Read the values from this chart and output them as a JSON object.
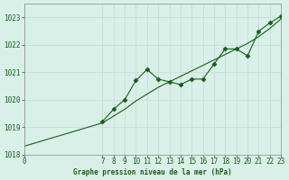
{
  "title": "Graphe pression niveau de la mer (hPa)",
  "background_color": "#d8f0e8",
  "grid_color": "#c8ddd5",
  "line_color": "#1a5c1a",
  "marker_color": "#1a5c1a",
  "x_smooth": [
    0,
    7,
    8,
    9,
    10,
    11,
    12,
    13,
    14,
    15,
    16,
    17,
    18,
    19,
    20,
    21,
    22,
    23
  ],
  "y_smooth": [
    1018.3,
    1019.15,
    1019.4,
    1019.65,
    1019.95,
    1020.2,
    1020.45,
    1020.65,
    1020.85,
    1021.05,
    1021.25,
    1021.45,
    1021.65,
    1021.85,
    1022.05,
    1022.3,
    1022.6,
    1022.95
  ],
  "x_data": [
    7,
    8,
    9,
    10,
    11,
    12,
    13,
    14,
    15,
    16,
    17,
    18,
    19,
    20,
    21,
    22,
    23
  ],
  "y_data": [
    1019.2,
    1019.65,
    1020.0,
    1020.7,
    1021.1,
    1020.75,
    1020.65,
    1020.55,
    1020.75,
    1020.75,
    1021.3,
    1021.85,
    1021.85,
    1021.6,
    1022.5,
    1022.8,
    1023.05
  ],
  "ylim": [
    1018,
    1023.5
  ],
  "yticks": [
    1018,
    1019,
    1020,
    1021,
    1022,
    1023
  ],
  "xticks": [
    0,
    7,
    8,
    9,
    10,
    11,
    12,
    13,
    14,
    15,
    16,
    17,
    18,
    19,
    20,
    21,
    22,
    23
  ],
  "xlim": [
    0,
    23
  ]
}
